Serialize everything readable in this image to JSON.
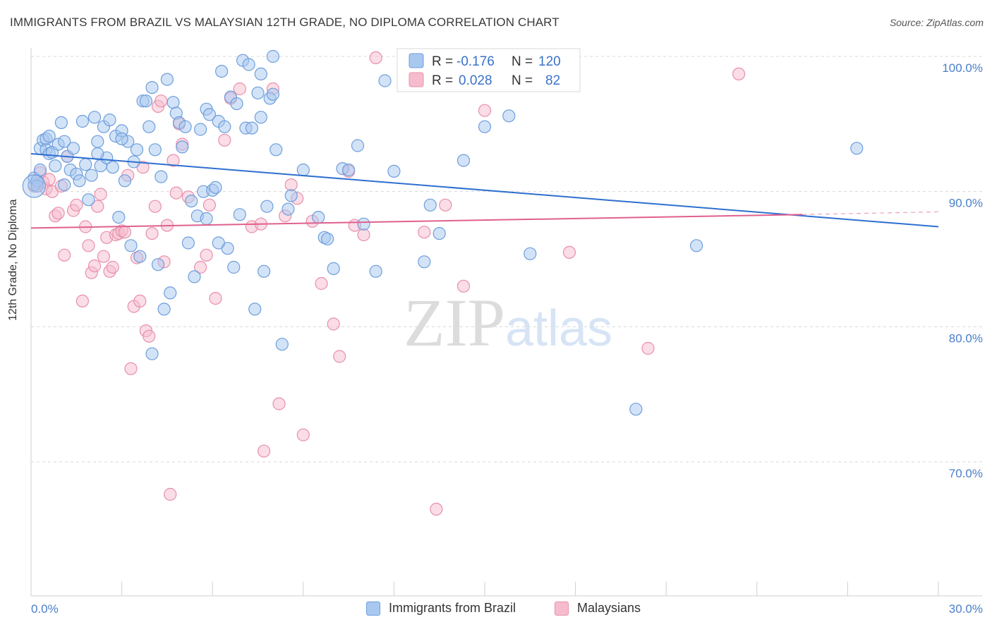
{
  "title": "IMMIGRANTS FROM BRAZIL VS MALAYSIAN 12TH GRADE, NO DIPLOMA CORRELATION CHART",
  "source": "Source: ZipAtlas.com",
  "watermark": "ZIPatlas",
  "colors": {
    "blue_fill": "#a8c8f0",
    "blue_stroke": "#6d9edc",
    "blue_line": "#2e6fd0",
    "pink_fill": "#f6bccd",
    "pink_stroke": "#e88fab",
    "pink_line": "#e0608f",
    "axis_text": "#4a7fc9",
    "grid": "#d8d8d8"
  },
  "legend": {
    "series": [
      {
        "r_label": "R =",
        "r_value": "-0.176",
        "n_label": "N =",
        "n_value": "120"
      },
      {
        "r_label": "R =",
        "r_value": "0.028",
        "n_label": "N =",
        "n_value": "82"
      }
    ]
  },
  "chart_data": {
    "type": "scatter",
    "title": "IMMIGRANTS FROM BRAZIL VS MALAYSIAN 12TH GRADE, NO DIPLOMA CORRELATION CHART",
    "xlabel": "",
    "ylabel": "12th Grade, No Diploma",
    "xlim": [
      0,
      30
    ],
    "ylim": [
      60.5,
      101.5
    ],
    "x_tick_labels": [
      "0.0%",
      "30.0%"
    ],
    "y_ticks": [
      70,
      80,
      90,
      100
    ],
    "y_tick_labels": [
      "70.0%",
      "80.0%",
      "90.0%",
      "100.0%"
    ],
    "grid": true,
    "legend_position": "top-center",
    "series": [
      {
        "name": "Immigrants from Brazil",
        "color": "#a8c8f0",
        "trend": {
          "x": [
            0,
            30
          ],
          "y": [
            92.8,
            87.4
          ]
        },
        "points": [
          [
            0.1,
            90.5
          ],
          [
            0.1,
            91.0
          ],
          [
            0.2,
            90.8
          ],
          [
            0.3,
            93.2
          ],
          [
            0.4,
            93.8
          ],
          [
            0.5,
            93.9
          ],
          [
            0.5,
            93.1
          ],
          [
            0.6,
            92.8
          ],
          [
            0.6,
            94.1
          ],
          [
            0.7,
            92.9
          ],
          [
            0.8,
            91.9
          ],
          [
            0.9,
            93.5
          ],
          [
            1.0,
            95.1
          ],
          [
            1.1,
            93.7
          ],
          [
            1.2,
            92.6
          ],
          [
            1.3,
            91.6
          ],
          [
            1.4,
            93.2
          ],
          [
            1.5,
            91.3
          ],
          [
            1.6,
            90.8
          ],
          [
            1.7,
            95.2
          ],
          [
            1.8,
            92.0
          ],
          [
            1.9,
            89.4
          ],
          [
            2.0,
            91.2
          ],
          [
            2.1,
            95.5
          ],
          [
            2.2,
            93.7
          ],
          [
            2.3,
            91.9
          ],
          [
            2.4,
            94.8
          ],
          [
            2.5,
            92.5
          ],
          [
            2.6,
            95.3
          ],
          [
            2.7,
            91.8
          ],
          [
            2.8,
            94.1
          ],
          [
            2.9,
            88.1
          ],
          [
            3.0,
            94.5
          ],
          [
            3.1,
            90.8
          ],
          [
            3.2,
            93.7
          ],
          [
            3.3,
            86.0
          ],
          [
            3.4,
            92.2
          ],
          [
            3.5,
            93.1
          ],
          [
            3.6,
            85.2
          ],
          [
            3.7,
            96.7
          ],
          [
            3.8,
            96.7
          ],
          [
            3.9,
            94.8
          ],
          [
            4.0,
            97.7
          ],
          [
            4.1,
            93.1
          ],
          [
            4.2,
            84.6
          ],
          [
            4.3,
            91.1
          ],
          [
            4.4,
            81.3
          ],
          [
            4.5,
            98.3
          ],
          [
            4.6,
            82.5
          ],
          [
            4.7,
            96.6
          ],
          [
            4.8,
            95.8
          ],
          [
            4.9,
            95.1
          ],
          [
            5.0,
            93.3
          ],
          [
            5.1,
            94.8
          ],
          [
            5.2,
            86.2
          ],
          [
            5.3,
            89.3
          ],
          [
            5.4,
            83.7
          ],
          [
            5.5,
            88.2
          ],
          [
            5.6,
            94.6
          ],
          [
            5.7,
            90.0
          ],
          [
            5.8,
            96.1
          ],
          [
            5.9,
            95.7
          ],
          [
            6.0,
            90.1
          ],
          [
            6.1,
            90.3
          ],
          [
            6.2,
            95.2
          ],
          [
            6.3,
            98.9
          ],
          [
            6.4,
            94.8
          ],
          [
            6.5,
            85.8
          ],
          [
            6.6,
            97.0
          ],
          [
            6.7,
            84.4
          ],
          [
            6.8,
            96.5
          ],
          [
            6.9,
            88.3
          ],
          [
            7.0,
            99.7
          ],
          [
            7.1,
            94.7
          ],
          [
            7.2,
            99.4
          ],
          [
            7.3,
            94.7
          ],
          [
            7.4,
            81.3
          ],
          [
            7.5,
            97.3
          ],
          [
            7.6,
            95.5
          ],
          [
            7.7,
            84.1
          ],
          [
            7.8,
            88.9
          ],
          [
            7.9,
            96.9
          ],
          [
            8.0,
            100.0
          ],
          [
            8.1,
            93.1
          ],
          [
            8.3,
            78.7
          ],
          [
            8.5,
            88.7
          ],
          [
            8.6,
            89.7
          ],
          [
            9.0,
            91.6
          ],
          [
            9.5,
            88.1
          ],
          [
            9.7,
            86.6
          ],
          [
            9.8,
            86.5
          ],
          [
            10.0,
            84.3
          ],
          [
            10.3,
            91.7
          ],
          [
            10.5,
            91.6
          ],
          [
            10.8,
            93.4
          ],
          [
            11.0,
            87.6
          ],
          [
            11.4,
            84.1
          ],
          [
            12.0,
            91.5
          ],
          [
            13.0,
            84.8
          ],
          [
            13.2,
            89.0
          ],
          [
            13.5,
            86.9
          ],
          [
            14.3,
            92.3
          ],
          [
            15.0,
            94.8
          ],
          [
            15.8,
            95.6
          ],
          [
            16.5,
            85.4
          ],
          [
            20.0,
            73.9
          ],
          [
            22.0,
            86.0
          ],
          [
            27.3,
            93.2
          ],
          [
            4.0,
            78.0
          ],
          [
            2.2,
            92.8
          ],
          [
            1.1,
            90.5
          ],
          [
            0.3,
            91.6
          ],
          [
            0.2,
            90.4
          ],
          [
            12.5,
            99.9
          ],
          [
            11.7,
            98.2
          ],
          [
            7.6,
            98.7
          ],
          [
            8.0,
            97.2
          ],
          [
            3.0,
            93.9
          ],
          [
            5.8,
            88.0
          ],
          [
            6.2,
            86.2
          ]
        ]
      },
      {
        "name": "Malaysians",
        "color": "#f6bccd",
        "trend": {
          "x": [
            0,
            25.5
          ],
          "y": [
            87.3,
            88.3
          ]
        },
        "trend_dashed": {
          "x": [
            25.5,
            30
          ],
          "y": [
            88.3,
            88.5
          ]
        },
        "points": [
          [
            0.1,
            90.4
          ],
          [
            0.2,
            90.6
          ],
          [
            0.3,
            91.4
          ],
          [
            0.4,
            90.7
          ],
          [
            0.5,
            90.2
          ],
          [
            0.6,
            90.9
          ],
          [
            0.7,
            90.0
          ],
          [
            0.8,
            88.2
          ],
          [
            0.9,
            88.4
          ],
          [
            1.0,
            90.4
          ],
          [
            1.1,
            85.3
          ],
          [
            1.2,
            92.6
          ],
          [
            1.4,
            88.6
          ],
          [
            1.5,
            89.0
          ],
          [
            1.7,
            81.9
          ],
          [
            1.8,
            87.4
          ],
          [
            1.9,
            86.0
          ],
          [
            2.0,
            84.0
          ],
          [
            2.1,
            84.5
          ],
          [
            2.2,
            88.9
          ],
          [
            2.3,
            89.8
          ],
          [
            2.4,
            85.2
          ],
          [
            2.5,
            86.6
          ],
          [
            2.6,
            84.1
          ],
          [
            2.7,
            84.4
          ],
          [
            2.8,
            86.8
          ],
          [
            2.9,
            86.9
          ],
          [
            3.0,
            87.1
          ],
          [
            3.1,
            87.0
          ],
          [
            3.2,
            91.2
          ],
          [
            3.3,
            76.9
          ],
          [
            3.4,
            81.5
          ],
          [
            3.5,
            85.1
          ],
          [
            3.6,
            81.9
          ],
          [
            3.7,
            91.8
          ],
          [
            3.8,
            79.7
          ],
          [
            3.9,
            79.3
          ],
          [
            4.0,
            86.9
          ],
          [
            4.1,
            88.9
          ],
          [
            4.2,
            96.3
          ],
          [
            4.3,
            96.7
          ],
          [
            4.4,
            84.8
          ],
          [
            4.5,
            87.5
          ],
          [
            4.6,
            67.6
          ],
          [
            4.7,
            92.3
          ],
          [
            4.8,
            89.9
          ],
          [
            4.9,
            95.0
          ],
          [
            5.0,
            93.5
          ],
          [
            5.2,
            89.6
          ],
          [
            5.6,
            84.4
          ],
          [
            5.8,
            85.3
          ],
          [
            5.9,
            89.0
          ],
          [
            6.1,
            82.1
          ],
          [
            6.4,
            93.8
          ],
          [
            6.6,
            96.9
          ],
          [
            6.9,
            97.6
          ],
          [
            7.3,
            87.4
          ],
          [
            7.6,
            87.6
          ],
          [
            8.0,
            97.6
          ],
          [
            8.2,
            74.3
          ],
          [
            8.4,
            88.2
          ],
          [
            8.6,
            90.5
          ],
          [
            8.8,
            89.5
          ],
          [
            9.0,
            72.0
          ],
          [
            9.3,
            87.8
          ],
          [
            9.6,
            83.2
          ],
          [
            10.0,
            80.2
          ],
          [
            10.2,
            77.8
          ],
          [
            10.5,
            91.5
          ],
          [
            11.0,
            86.8
          ],
          [
            11.4,
            99.9
          ],
          [
            13.0,
            87.0
          ],
          [
            13.3,
            100.0
          ],
          [
            13.4,
            66.5
          ],
          [
            13.7,
            89.0
          ],
          [
            14.3,
            83.0
          ],
          [
            15.0,
            96.0
          ],
          [
            17.8,
            85.5
          ],
          [
            20.4,
            78.4
          ],
          [
            23.4,
            98.7
          ],
          [
            7.7,
            70.8
          ],
          [
            10.7,
            87.5
          ]
        ]
      }
    ]
  },
  "bottom_legend": [
    {
      "label": "Immigrants from Brazil"
    },
    {
      "label": "Malaysians"
    }
  ]
}
